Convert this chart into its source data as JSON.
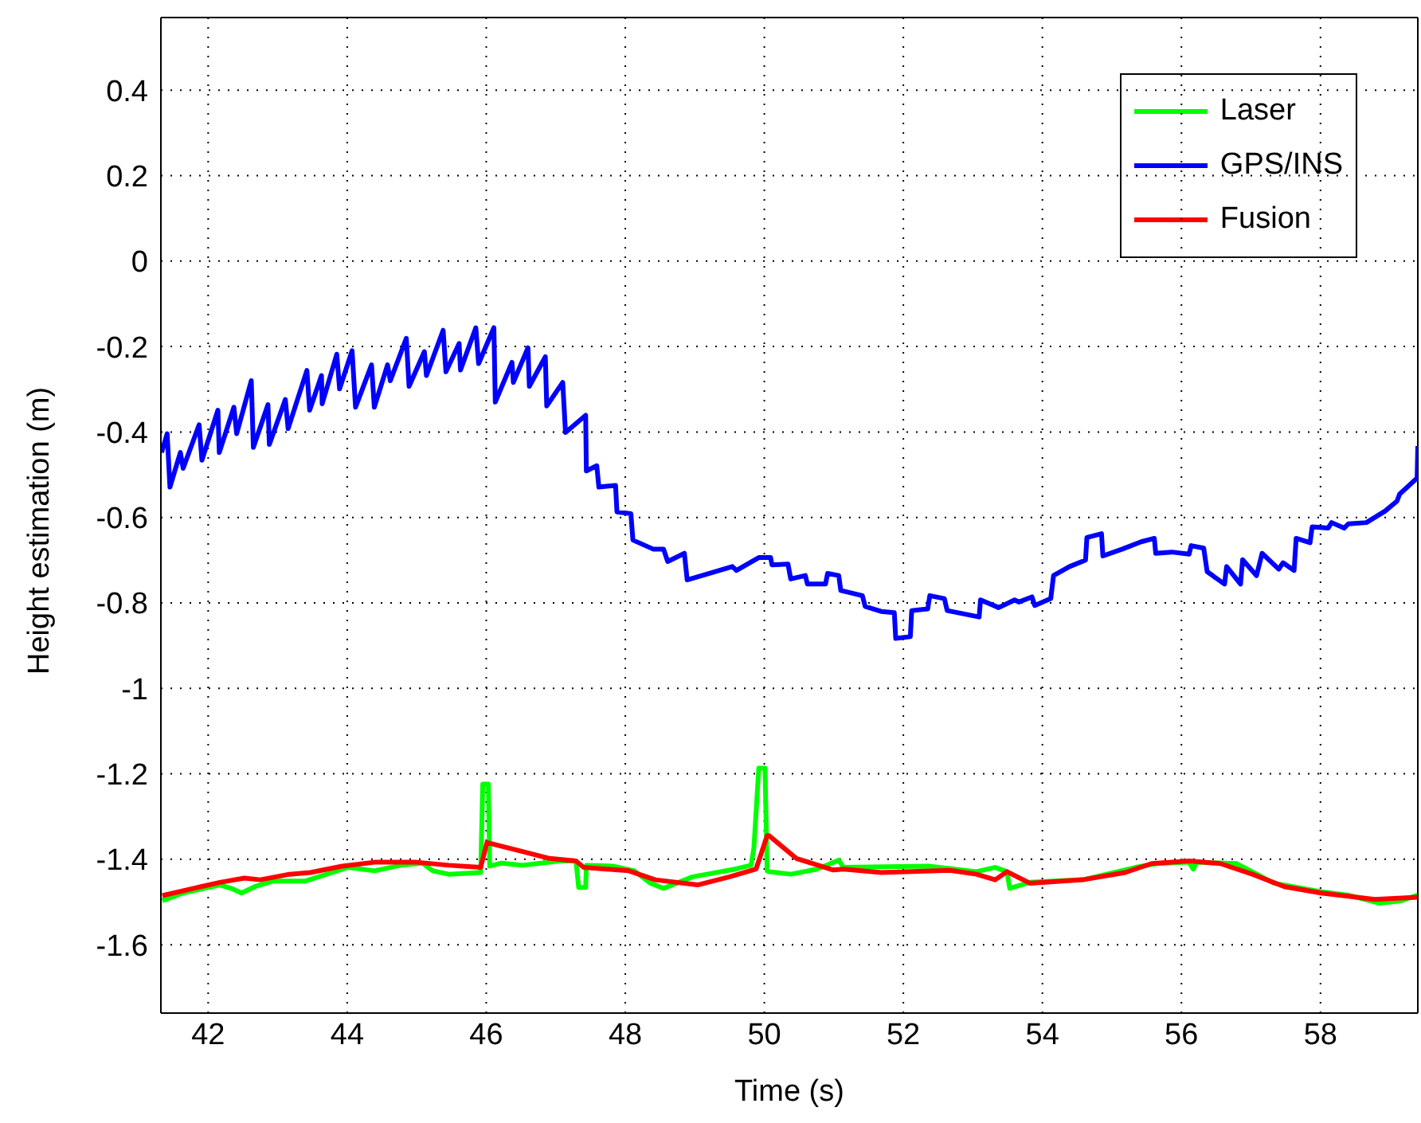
{
  "chart_data": {
    "type": "line",
    "xlabel": "Time (s)",
    "ylabel": "Height estimation (m)",
    "xlim": [
      41.32,
      59.4
    ],
    "xticks": [
      42,
      44,
      46,
      48,
      50,
      52,
      54,
      56,
      58
    ],
    "ylim": [
      -1.76,
      0.57
    ],
    "yticks": [
      -1.6,
      -1.4,
      -1.2,
      -1,
      -0.8,
      -0.6,
      -0.4,
      -0.2,
      0,
      0.2,
      0.4
    ],
    "grid": true,
    "legend": "top right",
    "line_style": "solid",
    "marker": "none",
    "series": [
      {
        "name": "Laser",
        "color": "#00ff00",
        "x": [
          41.34,
          41.64,
          42.17,
          42.33,
          42.48,
          42.67,
          42.94,
          43.4,
          44.01,
          44.39,
          44.77,
          45.08,
          45.23,
          45.46,
          45.92,
          45.95,
          46.03,
          46.05,
          46.22,
          46.52,
          47.06,
          47.29,
          47.33,
          47.43,
          47.44,
          47.82,
          48.13,
          48.36,
          48.55,
          48.97,
          49.58,
          49.81,
          49.85,
          49.92,
          50.01,
          50.04,
          50.07,
          50.38,
          50.76,
          51.07,
          51.14,
          52.36,
          53.05,
          53.32,
          53.49,
          53.53,
          53.82,
          54.58,
          55.34,
          55.65,
          56.11,
          56.17,
          56.22,
          56.79,
          57.33,
          58.01,
          58.4,
          58.85,
          59.16,
          59.4
        ],
        "values": [
          -1.497,
          -1.479,
          -1.46,
          -1.468,
          -1.479,
          -1.464,
          -1.451,
          -1.451,
          -1.419,
          -1.427,
          -1.414,
          -1.409,
          -1.427,
          -1.435,
          -1.431,
          -1.224,
          -1.224,
          -1.416,
          -1.409,
          -1.414,
          -1.404,
          -1.404,
          -1.466,
          -1.466,
          -1.414,
          -1.416,
          -1.427,
          -1.456,
          -1.468,
          -1.441,
          -1.423,
          -1.414,
          -1.373,
          -1.187,
          -1.187,
          -1.427,
          -1.429,
          -1.435,
          -1.423,
          -1.402,
          -1.419,
          -1.416,
          -1.429,
          -1.419,
          -1.429,
          -1.468,
          -1.454,
          -1.448,
          -1.419,
          -1.41,
          -1.407,
          -1.423,
          -1.407,
          -1.41,
          -1.456,
          -1.476,
          -1.484,
          -1.503,
          -1.497,
          -1.484
        ]
      },
      {
        "name": "GPS/INS",
        "color": "#0000ff",
        "x": [
          41.33,
          41.41,
          41.45,
          41.6,
          41.64,
          41.87,
          41.91,
          42.14,
          42.16,
          42.37,
          42.41,
          42.62,
          42.65,
          42.86,
          42.88,
          43.11,
          43.15,
          43.42,
          43.46,
          43.63,
          43.64,
          43.85,
          43.89,
          44.07,
          44.12,
          44.35,
          44.39,
          44.58,
          44.62,
          44.85,
          44.89,
          45.11,
          45.14,
          45.38,
          45.42,
          45.61,
          45.63,
          45.85,
          45.89,
          46.11,
          46.13,
          46.37,
          46.39,
          46.6,
          46.62,
          46.85,
          46.87,
          47.1,
          47.14,
          47.43,
          47.44,
          47.59,
          47.62,
          47.86,
          47.88,
          48.08,
          48.11,
          48.4,
          48.55,
          48.61,
          48.85,
          48.89,
          49.54,
          49.6,
          49.92,
          50.09,
          50.11,
          50.34,
          50.38,
          50.59,
          50.62,
          50.88,
          50.91,
          51.07,
          51.1,
          51.41,
          51.45,
          51.68,
          51.87,
          51.89,
          52.1,
          52.12,
          52.35,
          52.38,
          52.59,
          52.63,
          53.09,
          53.11,
          53.37,
          53.6,
          53.66,
          53.85,
          53.89,
          54.12,
          54.16,
          54.39,
          54.62,
          54.64,
          54.85,
          54.87,
          55.15,
          55.42,
          55.61,
          55.63,
          55.86,
          56.11,
          56.14,
          56.32,
          56.37,
          56.62,
          56.65,
          56.85,
          56.88,
          57.08,
          57.16,
          57.4,
          57.46,
          57.62,
          57.65,
          57.85,
          57.88,
          58.11,
          58.16,
          58.34,
          58.4,
          58.66,
          58.93,
          59.1,
          59.14,
          59.39,
          59.4
        ],
        "values": [
          -0.448,
          -0.404,
          -0.529,
          -0.448,
          -0.485,
          -0.383,
          -0.466,
          -0.349,
          -0.448,
          -0.342,
          -0.404,
          -0.28,
          -0.436,
          -0.336,
          -0.429,
          -0.324,
          -0.392,
          -0.256,
          -0.349,
          -0.268,
          -0.334,
          -0.218,
          -0.299,
          -0.21,
          -0.342,
          -0.243,
          -0.342,
          -0.243,
          -0.28,
          -0.181,
          -0.293,
          -0.212,
          -0.268,
          -0.162,
          -0.259,
          -0.193,
          -0.255,
          -0.156,
          -0.24,
          -0.156,
          -0.33,
          -0.237,
          -0.284,
          -0.203,
          -0.293,
          -0.224,
          -0.339,
          -0.284,
          -0.401,
          -0.361,
          -0.491,
          -0.479,
          -0.529,
          -0.525,
          -0.587,
          -0.591,
          -0.653,
          -0.674,
          -0.674,
          -0.703,
          -0.684,
          -0.746,
          -0.715,
          -0.724,
          -0.694,
          -0.694,
          -0.711,
          -0.709,
          -0.744,
          -0.736,
          -0.756,
          -0.756,
          -0.731,
          -0.736,
          -0.771,
          -0.783,
          -0.808,
          -0.82,
          -0.823,
          -0.883,
          -0.879,
          -0.818,
          -0.814,
          -0.783,
          -0.79,
          -0.818,
          -0.833,
          -0.793,
          -0.811,
          -0.793,
          -0.798,
          -0.786,
          -0.806,
          -0.79,
          -0.736,
          -0.715,
          -0.7,
          -0.647,
          -0.638,
          -0.69,
          -0.674,
          -0.657,
          -0.649,
          -0.684,
          -0.681,
          -0.686,
          -0.666,
          -0.672,
          -0.727,
          -0.756,
          -0.715,
          -0.756,
          -0.699,
          -0.736,
          -0.684,
          -0.721,
          -0.706,
          -0.724,
          -0.649,
          -0.659,
          -0.622,
          -0.625,
          -0.612,
          -0.625,
          -0.615,
          -0.612,
          -0.585,
          -0.562,
          -0.545,
          -0.508,
          -0.433
        ]
      },
      {
        "name": "Fusion",
        "color": "#ff0000",
        "x": [
          41.34,
          41.79,
          42.17,
          42.52,
          42.75,
          43.17,
          43.47,
          43.93,
          44.39,
          45,
          45.46,
          45.92,
          46.01,
          46.52,
          46.91,
          47.29,
          47.4,
          48.05,
          48.43,
          49.04,
          49.5,
          49.88,
          50.04,
          50.07,
          50.46,
          50.99,
          51.14,
          51.68,
          52.67,
          53.05,
          53.32,
          53.49,
          53.82,
          54.58,
          55.19,
          55.57,
          56.11,
          56.56,
          57.02,
          57.48,
          58.01,
          58.78,
          59.4
        ],
        "values": [
          -1.485,
          -1.468,
          -1.454,
          -1.444,
          -1.448,
          -1.435,
          -1.431,
          -1.416,
          -1.407,
          -1.407,
          -1.414,
          -1.419,
          -1.361,
          -1.382,
          -1.398,
          -1.404,
          -1.419,
          -1.427,
          -1.448,
          -1.46,
          -1.441,
          -1.423,
          -1.345,
          -1.345,
          -1.398,
          -1.425,
          -1.423,
          -1.431,
          -1.426,
          -1.435,
          -1.448,
          -1.429,
          -1.456,
          -1.448,
          -1.431,
          -1.41,
          -1.404,
          -1.41,
          -1.435,
          -1.464,
          -1.479,
          -1.494,
          -1.489
        ]
      }
    ]
  }
}
